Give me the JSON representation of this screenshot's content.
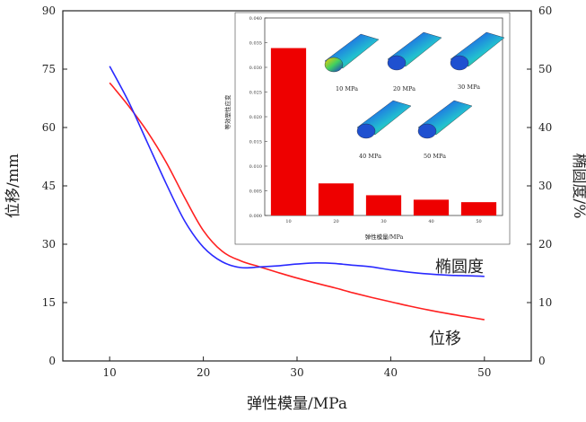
{
  "chart_data": [
    {
      "type": "line",
      "xlabel": "弹性模量/MPa",
      "ylabel": "位移/mm",
      "y2label": "椭圆度/%",
      "xlim": [
        5,
        55
      ],
      "xticks": [
        10,
        20,
        30,
        40,
        50
      ],
      "ylim": [
        0,
        90
      ],
      "yticks": [
        0,
        15,
        30,
        45,
        60,
        75,
        90
      ],
      "y2lim": [
        0,
        60
      ],
      "y2ticks": [
        0,
        10,
        20,
        30,
        40,
        50,
        60
      ],
      "series": [
        {
          "name": "位移",
          "axis": "left",
          "color": "#ff2020",
          "x": [
            10,
            12,
            14,
            16,
            18,
            20,
            22,
            24,
            26,
            28,
            30,
            32,
            34,
            36,
            38,
            40,
            42,
            44,
            46,
            48,
            50
          ],
          "y": [
            71.5,
            65.6,
            59.0,
            51.2,
            42.0,
            33.5,
            28.2,
            25.7,
            24.2,
            22.7,
            21.3,
            20.0,
            18.8,
            17.5,
            16.3,
            15.2,
            14.1,
            13.1,
            12.2,
            11.4,
            10.6
          ]
        },
        {
          "name": "椭圆度",
          "axis": "right",
          "color": "#2a2aff",
          "x": [
            10,
            12,
            14,
            16,
            18,
            20,
            22,
            24,
            26,
            28,
            30,
            32,
            34,
            36,
            38,
            40,
            42,
            44,
            46,
            48,
            50
          ],
          "y": [
            50.5,
            44.5,
            37.5,
            30.5,
            24.0,
            19.5,
            17.0,
            16.0,
            16.1,
            16.3,
            16.6,
            16.8,
            16.7,
            16.4,
            16.1,
            15.6,
            15.2,
            14.9,
            14.7,
            14.6,
            14.5
          ]
        }
      ],
      "annotations": [
        {
          "text": "椭圆度",
          "series": "椭圆度"
        },
        {
          "text": "位移",
          "series": "位移"
        }
      ]
    },
    {
      "type": "bar",
      "ylabel": "等效塑性应变",
      "xlabel": "弹性模量/MPa",
      "categories": [
        "10",
        "20",
        "30",
        "40",
        "50"
      ],
      "values": [
        0.0339,
        0.0065,
        0.0041,
        0.0032,
        0.0027
      ],
      "ylim": [
        0,
        0.04
      ],
      "yticks": [
        "0.000",
        "0.005",
        "0.010",
        "0.015",
        "0.020",
        "0.025",
        "0.030",
        "0.035",
        "0.040"
      ],
      "color": "#ee0000",
      "thumbnails": [
        "10 MPa",
        "20 MPa",
        "30 MPa",
        "40 MPa",
        "50 MPa"
      ]
    }
  ]
}
